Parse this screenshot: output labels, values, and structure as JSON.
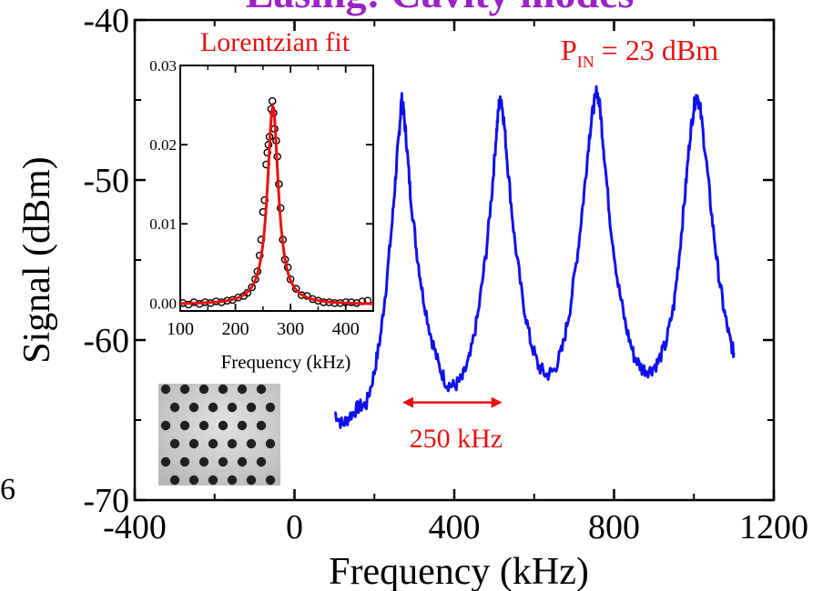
{
  "title": "Lasing: Cavity modes",
  "side_label": "6",
  "colors": {
    "title": "#9a22c8",
    "main_line": "#1010ee",
    "fit_line": "#e81010",
    "annotation": "#e81010",
    "axis": "#000000"
  },
  "chart_data": [
    {
      "type": "line",
      "id": "main",
      "xlabel": "Frequency (kHz)",
      "ylabel": "Signal (dBm)",
      "xlim": [
        -400,
        1200
      ],
      "ylim": [
        -70,
        -40
      ],
      "xticks": [
        -400,
        0,
        400,
        800,
        1200
      ],
      "yticks": [
        -40,
        -50,
        -60,
        -70
      ],
      "grid": false,
      "series": [
        {
          "color": "#1010ee",
          "points": [
            [
              100,
              -64.5
            ],
            [
              120,
              -65.3
            ],
            [
              140,
              -64.7
            ],
            [
              160,
              -64.2
            ],
            [
              180,
              -64.0
            ],
            [
              200,
              -62.0
            ],
            [
              215,
              -59.8
            ],
            [
              230,
              -56.5
            ],
            [
              245,
              -52.5
            ],
            [
              255,
              -49.2
            ],
            [
              262,
              -47.0
            ],
            [
              268,
              -44.9
            ],
            [
              273,
              -45.7
            ],
            [
              280,
              -47.5
            ],
            [
              290,
              -50.8
            ],
            [
              305,
              -54.3
            ],
            [
              320,
              -57.0
            ],
            [
              340,
              -59.6
            ],
            [
              360,
              -61.5
            ],
            [
              380,
              -62.7
            ],
            [
              400,
              -62.9
            ],
            [
              420,
              -62.4
            ],
            [
              440,
              -61.0
            ],
            [
              460,
              -58.3
            ],
            [
              480,
              -54.5
            ],
            [
              495,
              -50.5
            ],
            [
              505,
              -47.2
            ],
            [
              512,
              -45.3
            ],
            [
              518,
              -45.0
            ],
            [
              525,
              -46.5
            ],
            [
              535,
              -49.5
            ],
            [
              550,
              -53.5
            ],
            [
              570,
              -57.3
            ],
            [
              590,
              -60.0
            ],
            [
              610,
              -61.6
            ],
            [
              630,
              -62.2
            ],
            [
              650,
              -61.9
            ],
            [
              670,
              -60.6
            ],
            [
              690,
              -58.0
            ],
            [
              710,
              -54.3
            ],
            [
              725,
              -50.8
            ],
            [
              738,
              -47.3
            ],
            [
              748,
              -45.5
            ],
            [
              757,
              -44.4
            ],
            [
              765,
              -45.5
            ],
            [
              775,
              -48.3
            ],
            [
              790,
              -52.5
            ],
            [
              810,
              -56.5
            ],
            [
              830,
              -59.2
            ],
            [
              850,
              -61.0
            ],
            [
              870,
              -61.8
            ],
            [
              890,
              -61.9
            ],
            [
              910,
              -61.4
            ],
            [
              930,
              -60.2
            ],
            [
              950,
              -57.8
            ],
            [
              965,
              -54.3
            ],
            [
              978,
              -50.8
            ],
            [
              990,
              -47.3
            ],
            [
              1000,
              -45.4
            ],
            [
              1008,
              -44.6
            ],
            [
              1016,
              -45.6
            ],
            [
              1030,
              -48.6
            ],
            [
              1045,
              -52.3
            ],
            [
              1060,
              -55.6
            ],
            [
              1075,
              -58.1
            ],
            [
              1090,
              -60.0
            ],
            [
              1100,
              -60.8
            ]
          ]
        }
      ],
      "annotations": {
        "spacing_label": "250 kHz",
        "spacing_arrow": {
          "x1": 270,
          "x2": 520,
          "y": -63.9
        },
        "power_label": {
          "prefix": "P",
          "subscript": "IN",
          "text": " = 23 dBm"
        }
      }
    },
    {
      "type": "scatter",
      "id": "inset",
      "title": "Lorentzian fit",
      "xlabel": "Frequency (kHz)",
      "ylabel": "",
      "xlim": [
        100,
        450
      ],
      "ylim": [
        -0.001,
        0.03
      ],
      "xticks": [
        100,
        200,
        300,
        400
      ],
      "yticks": [
        0.0,
        0.01,
        0.02,
        0.03
      ],
      "ytick_labels": [
        "0.00",
        "0.01",
        "0.02",
        "0.03"
      ],
      "fit": {
        "model": "lorentzian",
        "x0": 268,
        "amplitude": 0.025,
        "hwhm": 12,
        "baseline": -0.0002,
        "color": "#e81010"
      },
      "points": [
        [
          105,
          0.0
        ],
        [
          115,
          -0.0002
        ],
        [
          125,
          0.0001
        ],
        [
          135,
          -0.0001
        ],
        [
          145,
          0.0001
        ],
        [
          155,
          0.0
        ],
        [
          165,
          0.0002
        ],
        [
          175,
          0.0001
        ],
        [
          185,
          0.0003
        ],
        [
          195,
          0.0004
        ],
        [
          205,
          0.0007
        ],
        [
          215,
          0.0009
        ],
        [
          222,
          0.0013
        ],
        [
          230,
          0.002
        ],
        [
          236,
          0.003
        ],
        [
          240,
          0.004
        ],
        [
          244,
          0.006
        ],
        [
          247,
          0.008
        ],
        [
          250,
          0.0115
        ],
        [
          253,
          0.013
        ],
        [
          256,
          0.0175
        ],
        [
          258,
          0.019
        ],
        [
          260,
          0.02
        ],
        [
          262,
          0.021
        ],
        [
          265,
          0.0245
        ],
        [
          267,
          0.0255
        ],
        [
          269,
          0.024
        ],
        [
          271,
          0.022
        ],
        [
          274,
          0.0205
        ],
        [
          276,
          0.0185
        ],
        [
          279,
          0.015
        ],
        [
          282,
          0.012
        ],
        [
          286,
          0.008
        ],
        [
          290,
          0.0055
        ],
        [
          295,
          0.0045
        ],
        [
          300,
          0.003
        ],
        [
          310,
          0.0018
        ],
        [
          320,
          0.001
        ],
        [
          330,
          0.0009
        ],
        [
          340,
          0.0005
        ],
        [
          350,
          0.0003
        ],
        [
          360,
          0.0001
        ],
        [
          370,
          0.0001
        ],
        [
          380,
          0.0
        ],
        [
          390,
          0.0
        ],
        [
          400,
          0.0001
        ],
        [
          410,
          0.0001
        ],
        [
          420,
          0.0
        ],
        [
          430,
          0.0002
        ],
        [
          440,
          0.0003
        ]
      ]
    }
  ]
}
